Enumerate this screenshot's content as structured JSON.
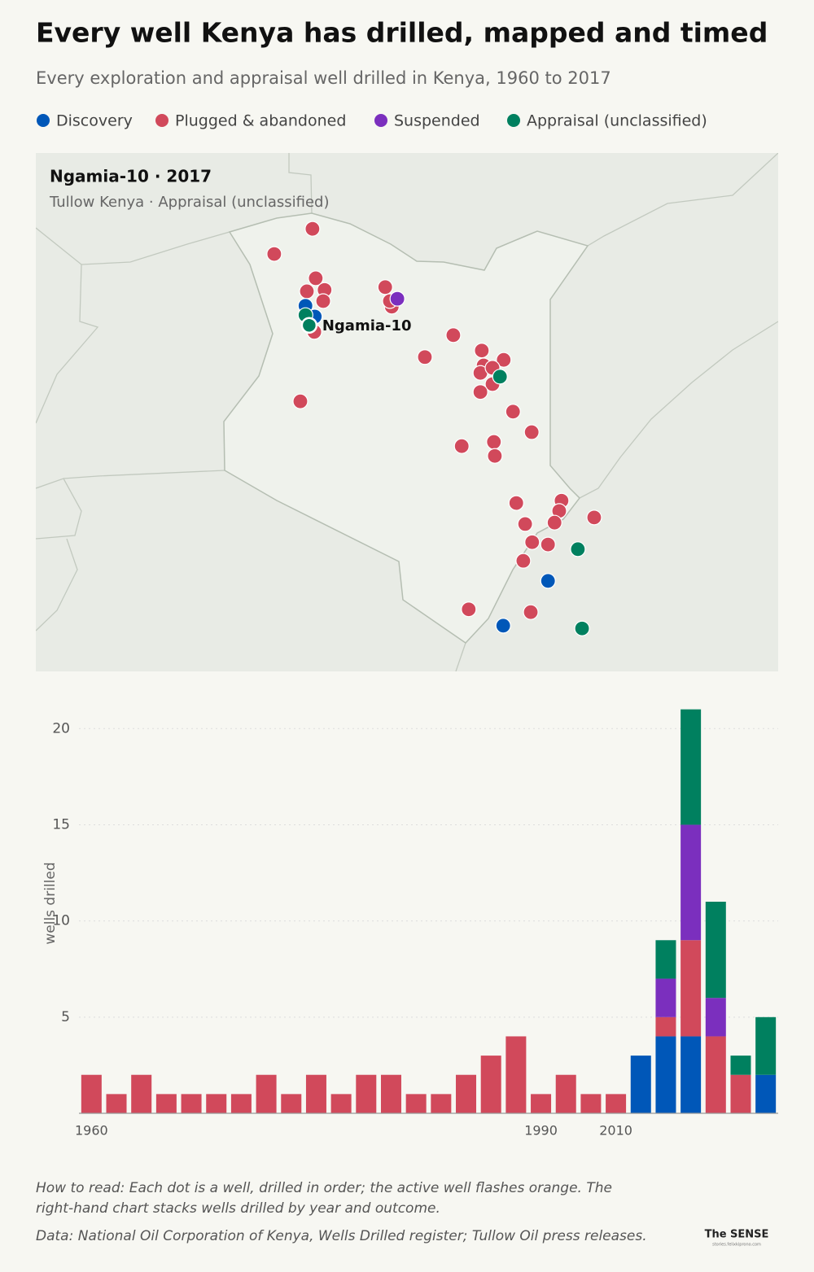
{
  "title": "Every well Kenya has drilled, mapped and timed",
  "subtitle": "Every exploration and appraisal well drilled in Kenya, 1960 to 2017",
  "chart_data": [
    {
      "type": "map",
      "info": {
        "heading": "Ngamia-10  ·  2017",
        "detail": "Tullow Kenya · Appraisal (unclassified)"
      },
      "points": [
        {
          "lon": 35.9,
          "lat": 4.28,
          "outcome": "Plugged & abandoned"
        },
        {
          "lon": 35.08,
          "lat": 3.74,
          "outcome": "Plugged & abandoned"
        },
        {
          "lon": 35.97,
          "lat": 3.22,
          "outcome": "Plugged & abandoned"
        },
        {
          "lon": 35.78,
          "lat": 2.94,
          "outcome": "Plugged & abandoned"
        },
        {
          "lon": 36.16,
          "lat": 2.97,
          "outcome": "Plugged & abandoned"
        },
        {
          "lon": 36.13,
          "lat": 2.73,
          "outcome": "Plugged & abandoned"
        },
        {
          "lon": 37.46,
          "lat": 3.03,
          "outcome": "Plugged & abandoned"
        },
        {
          "lon": 37.6,
          "lat": 2.61,
          "outcome": "Plugged & abandoned"
        },
        {
          "lon": 37.56,
          "lat": 2.73,
          "outcome": "Plugged & abandoned"
        },
        {
          "lon": 35.94,
          "lat": 2.07,
          "outcome": "Plugged & abandoned"
        },
        {
          "lon": 38.92,
          "lat": 2.0,
          "outcome": "Plugged & abandoned"
        },
        {
          "lon": 38.31,
          "lat": 1.53,
          "outcome": "Plugged & abandoned"
        },
        {
          "lon": 39.53,
          "lat": 1.67,
          "outcome": "Plugged & abandoned"
        },
        {
          "lon": 40.0,
          "lat": 1.47,
          "outcome": "Plugged & abandoned"
        },
        {
          "lon": 39.57,
          "lat": 1.35,
          "outcome": "Plugged & abandoned"
        },
        {
          "lon": 39.5,
          "lat": 1.19,
          "outcome": "Plugged & abandoned"
        },
        {
          "lon": 39.76,
          "lat": 0.95,
          "outcome": "Plugged & abandoned"
        },
        {
          "lon": 39.5,
          "lat": 0.78,
          "outcome": "Plugged & abandoned"
        },
        {
          "lon": 35.64,
          "lat": 0.58,
          "outcome": "Plugged & abandoned"
        },
        {
          "lon": 40.2,
          "lat": 0.36,
          "outcome": "Plugged & abandoned"
        },
        {
          "lon": 40.6,
          "lat": -0.08,
          "outcome": "Plugged & abandoned"
        },
        {
          "lon": 39.1,
          "lat": -0.38,
          "outcome": "Plugged & abandoned"
        },
        {
          "lon": 39.79,
          "lat": -0.29,
          "outcome": "Plugged & abandoned"
        },
        {
          "lon": 39.81,
          "lat": -0.59,
          "outcome": "Plugged & abandoned"
        },
        {
          "lon": 40.27,
          "lat": -1.6,
          "outcome": "Plugged & abandoned"
        },
        {
          "lon": 41.24,
          "lat": -1.55,
          "outcome": "Plugged & abandoned"
        },
        {
          "lon": 41.19,
          "lat": -1.77,
          "outcome": "Plugged & abandoned"
        },
        {
          "lon": 41.09,
          "lat": -2.02,
          "outcome": "Plugged & abandoned"
        },
        {
          "lon": 40.46,
          "lat": -2.05,
          "outcome": "Plugged & abandoned"
        },
        {
          "lon": 41.94,
          "lat": -1.91,
          "outcome": "Plugged & abandoned"
        },
        {
          "lon": 40.61,
          "lat": -2.44,
          "outcome": "Plugged & abandoned"
        },
        {
          "lon": 40.95,
          "lat": -2.49,
          "outcome": "Plugged & abandoned"
        },
        {
          "lon": 40.42,
          "lat": -2.84,
          "outcome": "Plugged & abandoned"
        },
        {
          "lon": 39.25,
          "lat": -3.88,
          "outcome": "Plugged & abandoned"
        },
        {
          "lon": 40.58,
          "lat": -3.94,
          "outcome": "Plugged & abandoned"
        },
        {
          "lon": 39.76,
          "lat": 1.3,
          "outcome": "Plugged & abandoned"
        },
        {
          "lon": 35.75,
          "lat": 2.63,
          "outcome": "Discovery"
        },
        {
          "lon": 35.95,
          "lat": 2.4,
          "outcome": "Discovery"
        },
        {
          "lon": 40.95,
          "lat": -3.27,
          "outcome": "Discovery"
        },
        {
          "lon": 39.99,
          "lat": -4.23,
          "outcome": "Discovery"
        },
        {
          "lon": 37.72,
          "lat": 2.78,
          "outcome": "Suspended"
        },
        {
          "lon": 35.75,
          "lat": 2.43,
          "outcome": "Appraisal (unclassified)"
        },
        {
          "lon": 39.92,
          "lat": 1.11,
          "outcome": "Appraisal (unclassified)"
        },
        {
          "lon": 41.59,
          "lat": -2.59,
          "outcome": "Appraisal (unclassified)"
        },
        {
          "lon": 41.68,
          "lat": -4.29,
          "outcome": "Appraisal (unclassified)"
        },
        {
          "lon": 35.83,
          "lat": 2.21,
          "outcome": "Appraisal (unclassified)",
          "name": "Ngamia-10"
        }
      ]
    },
    {
      "type": "bar",
      "stacked": true,
      "y_label": "wells drilled",
      "categories": [
        "1960",
        null,
        null,
        null,
        null,
        null,
        null,
        null,
        null,
        null,
        null,
        null,
        null,
        null,
        null,
        null,
        null,
        null,
        "1990",
        null,
        null,
        "2010",
        null,
        null,
        null,
        null,
        null,
        null
      ],
      "series": [
        {
          "name": "Discovery",
          "color": "#0057b8",
          "values": [
            0,
            0,
            0,
            0,
            0,
            0,
            0,
            0,
            0,
            0,
            0,
            0,
            0,
            0,
            0,
            0,
            0,
            0,
            0,
            0,
            0,
            0,
            3,
            4,
            4,
            0,
            0,
            2
          ]
        },
        {
          "name": "Plugged & abandoned",
          "color": "#d1495b",
          "values": [
            2,
            1,
            2,
            1,
            1,
            1,
            1,
            2,
            1,
            2,
            1,
            2,
            2,
            1,
            1,
            2,
            3,
            4,
            1,
            2,
            1,
            1,
            0,
            1,
            5,
            4,
            2,
            0
          ]
        },
        {
          "name": "Suspended",
          "color": "#7b2fbe",
          "values": [
            0,
            0,
            0,
            0,
            0,
            0,
            0,
            0,
            0,
            0,
            0,
            0,
            0,
            0,
            0,
            0,
            0,
            0,
            0,
            0,
            0,
            0,
            0,
            2,
            6,
            2,
            0,
            0
          ]
        },
        {
          "name": "Appraisal (unclassified)",
          "color": "#00805f",
          "values": [
            0,
            0,
            0,
            0,
            0,
            0,
            0,
            0,
            0,
            0,
            0,
            0,
            0,
            0,
            0,
            0,
            0,
            0,
            0,
            0,
            0,
            0,
            0,
            2,
            6,
            5,
            1,
            3
          ]
        }
      ],
      "ylim": [
        0,
        22
      ],
      "yticks": [
        5,
        10,
        15,
        20
      ],
      "grid": true
    }
  ],
  "notes": [
    "How to read: Each dot is a well, drilled in order; the active well flashes orange. The",
    "right-hand chart stacks wells drilled by year and outcome.",
    "Data: National Oil Corporation of Kenya, Wells Drilled register; Tullow Oil press releases."
  ],
  "credit": {
    "brand": "The SENSE",
    "site": "stories.felixkiprono.com"
  }
}
